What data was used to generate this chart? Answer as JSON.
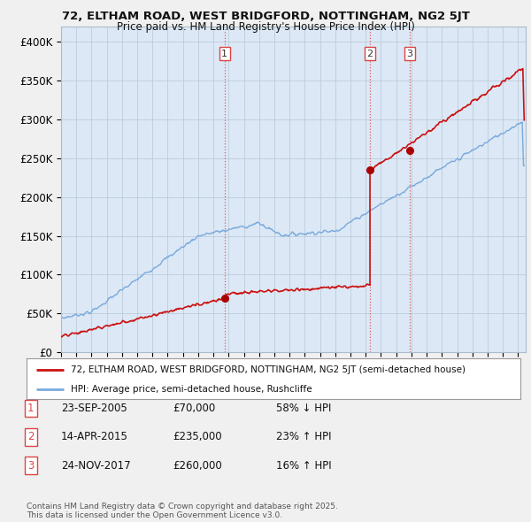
{
  "title1": "72, ELTHAM ROAD, WEST BRIDGFORD, NOTTINGHAM, NG2 5JT",
  "title2": "Price paid vs. HM Land Registry's House Price Index (HPI)",
  "ylim": [
    0,
    420000
  ],
  "yticks": [
    0,
    50000,
    100000,
    150000,
    200000,
    250000,
    300000,
    350000,
    400000
  ],
  "ytick_labels": [
    "£0",
    "£50K",
    "£100K",
    "£150K",
    "£200K",
    "£250K",
    "£300K",
    "£350K",
    "£400K"
  ],
  "xlim_start": 1995.0,
  "xlim_end": 2025.5,
  "transactions": [
    {
      "date": 2005.73,
      "price": 70000,
      "label": "1"
    },
    {
      "date": 2015.28,
      "price": 235000,
      "label": "2"
    },
    {
      "date": 2017.9,
      "price": 260000,
      "label": "3"
    }
  ],
  "vline_color": "#dd4444",
  "dot_color": "#aa0000",
  "red_line_color": "#cc1111",
  "blue_line_color": "#7aaadd",
  "legend_red_label": "72, ELTHAM ROAD, WEST BRIDGFORD, NOTTINGHAM, NG2 5JT (semi-detached house)",
  "legend_blue_label": "HPI: Average price, semi-detached house, Rushcliffe",
  "table_rows": [
    {
      "num": "1",
      "date": "23-SEP-2005",
      "price": "£70,000",
      "hpi": "58% ↓ HPI"
    },
    {
      "num": "2",
      "date": "14-APR-2015",
      "price": "£235,000",
      "hpi": "23% ↑ HPI"
    },
    {
      "num": "3",
      "date": "24-NOV-2017",
      "price": "£260,000",
      "hpi": "16% ↑ HPI"
    }
  ],
  "footnote": "Contains HM Land Registry data © Crown copyright and database right 2025.\nThis data is licensed under the Open Government Licence v3.0.",
  "bg_color": "#f0f0f0",
  "plot_bg_color": "#dce8f5",
  "grid_color": "#bbccdd"
}
